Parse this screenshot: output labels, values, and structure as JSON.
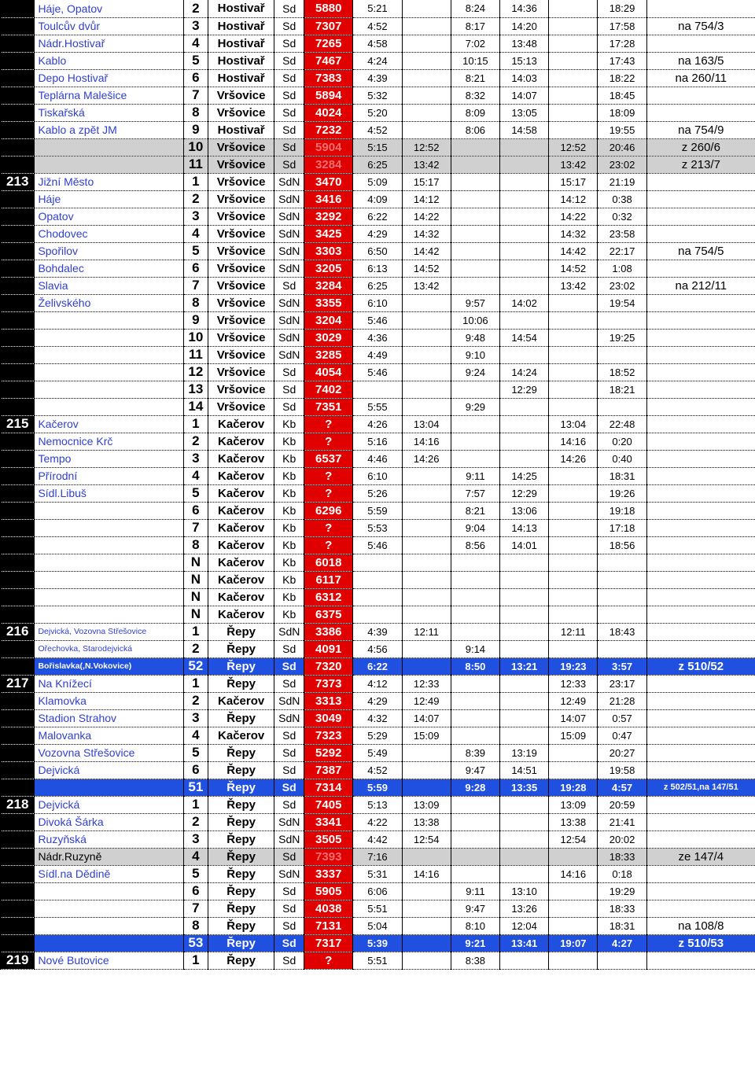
{
  "colors": {
    "red": "#e00000",
    "blue": "#2050e0",
    "black": "#000000",
    "grey": "#d0d0d0",
    "lightgrey_text": "#b0b0b0",
    "stop_link": "#3040d0"
  },
  "rows": [
    {
      "line": "",
      "stop": "Háje, Opatov",
      "num": "2",
      "depot": "Hostivař",
      "day": "Sd",
      "code": "5880",
      "codebg": "red",
      "t": [
        "5:21",
        "",
        "8:24",
        "14:36",
        "",
        "18:29"
      ],
      "note": ""
    },
    {
      "line": "",
      "stop": "Toulcův dvůr",
      "num": "3",
      "depot": "Hostivař",
      "day": "Sd",
      "code": "7307",
      "codebg": "red",
      "t": [
        "4:52",
        "",
        "8:17",
        "14:20",
        "",
        "17:58"
      ],
      "note": "na 754/3"
    },
    {
      "line": "",
      "stop": "Nádr.Hostivař",
      "num": "4",
      "depot": "Hostivař",
      "day": "Sd",
      "code": "7265",
      "codebg": "red",
      "t": [
        "4:58",
        "",
        "7:02",
        "13:48",
        "",
        "17:28"
      ],
      "note": ""
    },
    {
      "line": "",
      "stop": "Kablo",
      "num": "5",
      "depot": "Hostivař",
      "day": "Sd",
      "code": "7467",
      "codebg": "red",
      "t": [
        "4:24",
        "",
        "10:15",
        "15:13",
        "",
        "17:43"
      ],
      "note": "na 163/5"
    },
    {
      "line": "",
      "stop": "Depo Hostivař",
      "num": "6",
      "depot": "Hostivař",
      "day": "Sd",
      "code": "7383",
      "codebg": "red",
      "t": [
        "4:39",
        "",
        "8:21",
        "14:03",
        "",
        "18:22"
      ],
      "note": "na 260/11"
    },
    {
      "line": "",
      "stop": "Teplárna Malešice",
      "num": "7",
      "depot": "Vršovice",
      "day": "Sd",
      "code": "5894",
      "codebg": "red",
      "t": [
        "5:32",
        "",
        "8:32",
        "14:07",
        "",
        "18:45"
      ],
      "note": ""
    },
    {
      "line": "",
      "stop": "Tiskařská",
      "num": "8",
      "depot": "Vršovice",
      "day": "Sd",
      "code": "4024",
      "codebg": "red",
      "t": [
        "5:20",
        "",
        "8:09",
        "13:05",
        "",
        "18:09"
      ],
      "note": ""
    },
    {
      "line": "",
      "stop": "Kablo a zpět JM",
      "num": "9",
      "depot": "Hostivař",
      "day": "Sd",
      "code": "7232",
      "codebg": "red",
      "t": [
        "4:52",
        "",
        "8:06",
        "14:58",
        "",
        "19:55"
      ],
      "note": "na 754/9"
    },
    {
      "line": "",
      "stop": "",
      "num": "10",
      "depot": "Vršovice",
      "day": "Sd",
      "code": "5904",
      "codebg": "red",
      "codefade": true,
      "t": [
        "5:15",
        "12:52",
        "",
        "",
        "12:52",
        "20:46"
      ],
      "note": "z 260/6",
      "rowbg": "grey"
    },
    {
      "line": "",
      "stop": "",
      "num": "11",
      "depot": "Vršovice",
      "day": "Sd",
      "code": "3284",
      "codebg": "red",
      "codefade": true,
      "t": [
        "6:25",
        "13:42",
        "",
        "",
        "13:42",
        "23:02"
      ],
      "note": "z 213/7",
      "rowbg": "grey"
    },
    {
      "line": "213",
      "stop": "Jižní Město",
      "num": "1",
      "depot": "Vršovice",
      "day": "SdN",
      "code": "3470",
      "codebg": "red",
      "t": [
        "5:09",
        "15:17",
        "",
        "",
        "15:17",
        "21:19"
      ],
      "note": ""
    },
    {
      "line": "",
      "stop": "Háje",
      "num": "2",
      "depot": "Vršovice",
      "day": "SdN",
      "code": "3416",
      "codebg": "red",
      "t": [
        "4:09",
        "14:12",
        "",
        "",
        "14:12",
        "0:38"
      ],
      "note": ""
    },
    {
      "line": "",
      "stop": "Opatov",
      "num": "3",
      "depot": "Vršovice",
      "day": "SdN",
      "code": "3292",
      "codebg": "red",
      "t": [
        "6:22",
        "14:22",
        "",
        "",
        "14:22",
        "0:32"
      ],
      "note": ""
    },
    {
      "line": "",
      "stop": "Chodovec",
      "num": "4",
      "depot": "Vršovice",
      "day": "SdN",
      "code": "3425",
      "codebg": "red",
      "t": [
        "4:29",
        "14:32",
        "",
        "",
        "14:32",
        "23:58"
      ],
      "note": ""
    },
    {
      "line": "",
      "stop": "Spořilov",
      "num": "5",
      "depot": "Vršovice",
      "day": "SdN",
      "code": "3303",
      "codebg": "red",
      "t": [
        "6:50",
        "14:42",
        "",
        "",
        "14:42",
        "22:17"
      ],
      "note": "na 754/5"
    },
    {
      "line": "",
      "stop": "Bohdalec",
      "num": "6",
      "depot": "Vršovice",
      "day": "SdN",
      "code": "3205",
      "codebg": "red",
      "t": [
        "6:13",
        "14:52",
        "",
        "",
        "14:52",
        "1:08"
      ],
      "note": ""
    },
    {
      "line": "",
      "stop": "Slavia",
      "num": "7",
      "depot": "Vršovice",
      "day": "Sd",
      "code": "3284",
      "codebg": "red",
      "t": [
        "6:25",
        "13:42",
        "",
        "",
        "13:42",
        "23:02"
      ],
      "note": "na 212/11"
    },
    {
      "line": "",
      "stop": "Želivského",
      "num": "8",
      "depot": "Vršovice",
      "day": "SdN",
      "code": "3355",
      "codebg": "red",
      "t": [
        "6:10",
        "",
        "9:57",
        "14:02",
        "",
        "19:54"
      ],
      "note": ""
    },
    {
      "line": "",
      "stop": "",
      "num": "9",
      "depot": "Vršovice",
      "day": "SdN",
      "code": "3204",
      "codebg": "red",
      "t": [
        "5:46",
        "",
        "10:06",
        "",
        "",
        ""
      ],
      "note": ""
    },
    {
      "line": "",
      "stop": "",
      "num": "10",
      "depot": "Vršovice",
      "day": "SdN",
      "code": "3029",
      "codebg": "red",
      "t": [
        "4:36",
        "",
        "9:48",
        "14:54",
        "",
        "19:25"
      ],
      "note": ""
    },
    {
      "line": "",
      "stop": "",
      "num": "11",
      "depot": "Vršovice",
      "day": "SdN",
      "code": "3285",
      "codebg": "red",
      "t": [
        "4:49",
        "",
        "9:10",
        "",
        "",
        ""
      ],
      "note": ""
    },
    {
      "line": "",
      "stop": "",
      "num": "12",
      "depot": "Vršovice",
      "day": "Sd",
      "code": "4054",
      "codebg": "red",
      "t": [
        "5:46",
        "",
        "9:24",
        "14:24",
        "",
        "18:52"
      ],
      "note": ""
    },
    {
      "line": "",
      "stop": "",
      "num": "13",
      "depot": "Vršovice",
      "day": "Sd",
      "code": "7402",
      "codebg": "red",
      "t": [
        "",
        "",
        "",
        "12:29",
        "",
        "18:21"
      ],
      "note": ""
    },
    {
      "line": "",
      "stop": "",
      "num": "14",
      "depot": "Vršovice",
      "day": "Sd",
      "code": "7351",
      "codebg": "red",
      "t": [
        "5:55",
        "",
        "9:29",
        "",
        "",
        ""
      ],
      "note": ""
    },
    {
      "line": "215",
      "stop": "Kačerov",
      "num": "1",
      "depot": "Kačerov",
      "day": "Kb",
      "code": "?",
      "codebg": "red",
      "t": [
        "4:26",
        "13:04",
        "",
        "",
        "13:04",
        "22:48"
      ],
      "note": ""
    },
    {
      "line": "",
      "stop": "Nemocnice Krč",
      "num": "2",
      "depot": "Kačerov",
      "day": "Kb",
      "code": "?",
      "codebg": "red",
      "t": [
        "5:16",
        "14:16",
        "",
        "",
        "14:16",
        "0:20"
      ],
      "note": ""
    },
    {
      "line": "",
      "stop": "Tempo",
      "num": "3",
      "depot": "Kačerov",
      "day": "Kb",
      "code": "6537",
      "codebg": "red",
      "t": [
        "4:46",
        "14:26",
        "",
        "",
        "14:26",
        "0:40"
      ],
      "note": ""
    },
    {
      "line": "",
      "stop": "Přírodní",
      "num": "4",
      "depot": "Kačerov",
      "day": "Kb",
      "code": "?",
      "codebg": "red",
      "t": [
        "6:10",
        "",
        "9:11",
        "14:25",
        "",
        "18:31"
      ],
      "note": ""
    },
    {
      "line": "",
      "stop": "Sídl.Libuš",
      "num": "5",
      "depot": "Kačerov",
      "day": "Kb",
      "code": "?",
      "codebg": "red",
      "t": [
        "5:26",
        "",
        "7:57",
        "12:29",
        "",
        "19:26"
      ],
      "note": ""
    },
    {
      "line": "",
      "stop": "",
      "num": "6",
      "depot": "Kačerov",
      "day": "Kb",
      "code": "6296",
      "codebg": "red",
      "t": [
        "5:59",
        "",
        "8:21",
        "13:06",
        "",
        "19:18"
      ],
      "note": ""
    },
    {
      "line": "",
      "stop": "",
      "num": "7",
      "depot": "Kačerov",
      "day": "Kb",
      "code": "?",
      "codebg": "red",
      "t": [
        "5:53",
        "",
        "9:04",
        "14:13",
        "",
        "17:18"
      ],
      "note": ""
    },
    {
      "line": "",
      "stop": "",
      "num": "8",
      "depot": "Kačerov",
      "day": "Kb",
      "code": "?",
      "codebg": "red",
      "t": [
        "5:46",
        "",
        "8:56",
        "14:01",
        "",
        "18:56"
      ],
      "note": ""
    },
    {
      "line": "",
      "stop": "",
      "num": "N",
      "depot": "Kačerov",
      "day": "Kb",
      "code": "6018",
      "codebg": "red",
      "t": [
        "",
        "",
        "",
        "",
        "",
        ""
      ],
      "note": ""
    },
    {
      "line": "",
      "stop": "",
      "num": "N",
      "depot": "Kačerov",
      "day": "Kb",
      "code": "6117",
      "codebg": "red",
      "t": [
        "",
        "",
        "",
        "",
        "",
        ""
      ],
      "note": ""
    },
    {
      "line": "",
      "stop": "",
      "num": "N",
      "depot": "Kačerov",
      "day": "Kb",
      "code": "6312",
      "codebg": "red",
      "t": [
        "",
        "",
        "",
        "",
        "",
        ""
      ],
      "note": ""
    },
    {
      "line": "",
      "stop": "",
      "num": "N",
      "depot": "Kačerov",
      "day": "Kb",
      "code": "6375",
      "codebg": "red",
      "t": [
        "",
        "",
        "",
        "",
        "",
        ""
      ],
      "note": ""
    },
    {
      "line": "216",
      "stop": "Dejvická, Vozovna Střešovice",
      "stopsmall": true,
      "num": "1",
      "depot": "Řepy",
      "day": "SdN",
      "code": "3386",
      "codebg": "red",
      "t": [
        "4:39",
        "12:11",
        "",
        "",
        "12:11",
        "18:43"
      ],
      "note": ""
    },
    {
      "line": "",
      "stop": "Ořechovka, Starodejvická",
      "stopsmall": true,
      "num": "2",
      "depot": "Řepy",
      "day": "Sd",
      "code": "4091",
      "codebg": "red",
      "t": [
        "4:56",
        "",
        "9:14",
        "",
        "",
        ""
      ],
      "note": ""
    },
    {
      "line": "",
      "stop": "Bořislavka(,N.Vokovice)",
      "stopsmall": true,
      "num": "52",
      "depot": "Řepy",
      "day": "Sd",
      "code": "7320",
      "codebg": "red",
      "t": [
        "6:22",
        "",
        "8:50",
        "13:21",
        "19:23",
        "3:57"
      ],
      "note": "z 510/52",
      "rowbg": "blue",
      "bold": true
    },
    {
      "line": "217",
      "stop": "Na Knížecí",
      "num": "1",
      "depot": "Řepy",
      "day": "Sd",
      "code": "7373",
      "codebg": "red",
      "t": [
        "4:12",
        "12:33",
        "",
        "",
        "12:33",
        "23:17"
      ],
      "note": ""
    },
    {
      "line": "",
      "stop": "Klamovka",
      "num": "2",
      "depot": "Kačerov",
      "day": "SdN",
      "code": "3313",
      "codebg": "red",
      "t": [
        "4:29",
        "12:49",
        "",
        "",
        "12:49",
        "21:28"
      ],
      "note": ""
    },
    {
      "line": "",
      "stop": "Stadion Strahov",
      "num": "3",
      "depot": "Řepy",
      "day": "SdN",
      "code": "3049",
      "codebg": "red",
      "t": [
        "4:32",
        "14:07",
        "",
        "",
        "14:07",
        "0:57"
      ],
      "note": ""
    },
    {
      "line": "",
      "stop": "Malovanka",
      "num": "4",
      "depot": "Kačerov",
      "day": "Sd",
      "code": "7323",
      "codebg": "red",
      "t": [
        "5:29",
        "15:09",
        "",
        "",
        "15:09",
        "0:47"
      ],
      "note": ""
    },
    {
      "line": "",
      "stop": "Vozovna Střešovice",
      "num": "5",
      "depot": "Řepy",
      "day": "Sd",
      "code": "5292",
      "codebg": "red",
      "t": [
        "5:49",
        "",
        "8:39",
        "13:19",
        "",
        "20:27"
      ],
      "note": ""
    },
    {
      "line": "",
      "stop": "Dejvická",
      "num": "6",
      "depot": "Řepy",
      "day": "Sd",
      "code": "7387",
      "codebg": "red",
      "t": [
        "4:52",
        "",
        "9:47",
        "14:51",
        "",
        "19:58"
      ],
      "note": ""
    },
    {
      "line": "",
      "stop": "",
      "num": "51",
      "depot": "Řepy",
      "day": "Sd",
      "code": "7314",
      "codebg": "red",
      "t": [
        "5:59",
        "",
        "9:28",
        "13:35",
        "19:28",
        "4:57"
      ],
      "note": "z 502/51,na 147/51",
      "rowbg": "blue",
      "bold": true,
      "notesmall": true
    },
    {
      "line": "218",
      "stop": "Dejvická",
      "num": "1",
      "depot": "Řepy",
      "day": "Sd",
      "code": "7405",
      "codebg": "red",
      "t": [
        "5:13",
        "13:09",
        "",
        "",
        "13:09",
        "20:59"
      ],
      "note": ""
    },
    {
      "line": "",
      "stop": "Divoká Šárka",
      "num": "2",
      "depot": "Řepy",
      "day": "SdN",
      "code": "3341",
      "codebg": "red",
      "t": [
        "4:22",
        "13:38",
        "",
        "",
        "13:38",
        "21:41"
      ],
      "note": ""
    },
    {
      "line": "",
      "stop": "Ruzyňská",
      "num": "3",
      "depot": "Řepy",
      "day": "SdN",
      "code": "3505",
      "codebg": "red",
      "t": [
        "4:42",
        "12:54",
        "",
        "",
        "12:54",
        "20:02"
      ],
      "note": ""
    },
    {
      "line": "",
      "stop": "Nádr.Ruzyně",
      "num": "4",
      "depot": "Řepy",
      "day": "Sd",
      "code": "7393",
      "codebg": "red",
      "codefade": true,
      "t": [
        "7:16",
        "",
        "",
        "",
        "",
        "18:33"
      ],
      "note": "ze 147/4",
      "rowbg": "grey"
    },
    {
      "line": "",
      "stop": "Sídl.na Dědině",
      "num": "5",
      "depot": "Řepy",
      "day": "SdN",
      "code": "3337",
      "codebg": "red",
      "t": [
        "5:31",
        "14:16",
        "",
        "",
        "14:16",
        "0:18"
      ],
      "note": ""
    },
    {
      "line": "",
      "stop": "",
      "num": "6",
      "depot": "Řepy",
      "day": "Sd",
      "code": "5905",
      "codebg": "red",
      "t": [
        "6:06",
        "",
        "9:11",
        "13:10",
        "",
        "19:29"
      ],
      "note": ""
    },
    {
      "line": "",
      "stop": "",
      "num": "7",
      "depot": "Řepy",
      "day": "Sd",
      "code": "4038",
      "codebg": "red",
      "t": [
        "5:51",
        "",
        "9:47",
        "13:26",
        "",
        "18:33"
      ],
      "note": ""
    },
    {
      "line": "",
      "stop": "",
      "num": "8",
      "depot": "Řepy",
      "day": "Sd",
      "code": "7131",
      "codebg": "red",
      "t": [
        "5:04",
        "",
        "8:10",
        "12:04",
        "",
        "18:31"
      ],
      "note": "na 108/8"
    },
    {
      "line": "",
      "stop": "",
      "num": "53",
      "depot": "Řepy",
      "day": "Sd",
      "code": "7317",
      "codebg": "red",
      "t": [
        "5:39",
        "",
        "9:21",
        "13:41",
        "19:07",
        "4:27"
      ],
      "note": "z 510/53",
      "rowbg": "blue",
      "bold": true
    },
    {
      "line": "219",
      "stop": "Nové Butovice",
      "num": "1",
      "depot": "Řepy",
      "day": "Sd",
      "code": "?",
      "codebg": "red",
      "t": [
        "5:51",
        "",
        "8:38",
        "",
        "",
        ""
      ],
      "note": ""
    }
  ]
}
